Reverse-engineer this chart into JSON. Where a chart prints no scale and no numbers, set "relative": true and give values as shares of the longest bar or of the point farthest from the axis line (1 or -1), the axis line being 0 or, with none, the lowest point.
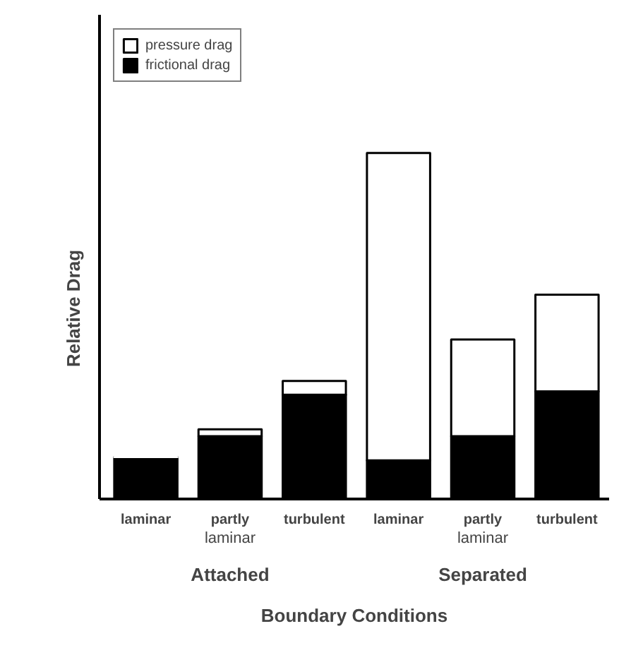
{
  "chart_data": {
    "type": "bar",
    "stacked": true,
    "relative": true,
    "xlabel": "Boundary Conditions",
    "ylabel": "Relative Drag",
    "categories": [
      "laminar",
      "partly",
      "turbulent",
      "laminar",
      "partly",
      "turbulent"
    ],
    "series": [
      {
        "name": "frictional drag",
        "color": "#000000",
        "values": [
          0.12,
          0.18,
          0.3,
          0.11,
          0.18,
          0.31
        ]
      },
      {
        "name": "pressure drag",
        "color": "#ffffff",
        "values": [
          0,
          0.02,
          0.04,
          0.89,
          0.28,
          0.28
        ]
      }
    ],
    "annotations": [
      "laminar",
      "laminar",
      "Attached",
      "Separated"
    ],
    "legend": "top left",
    "grid": false
  }
}
